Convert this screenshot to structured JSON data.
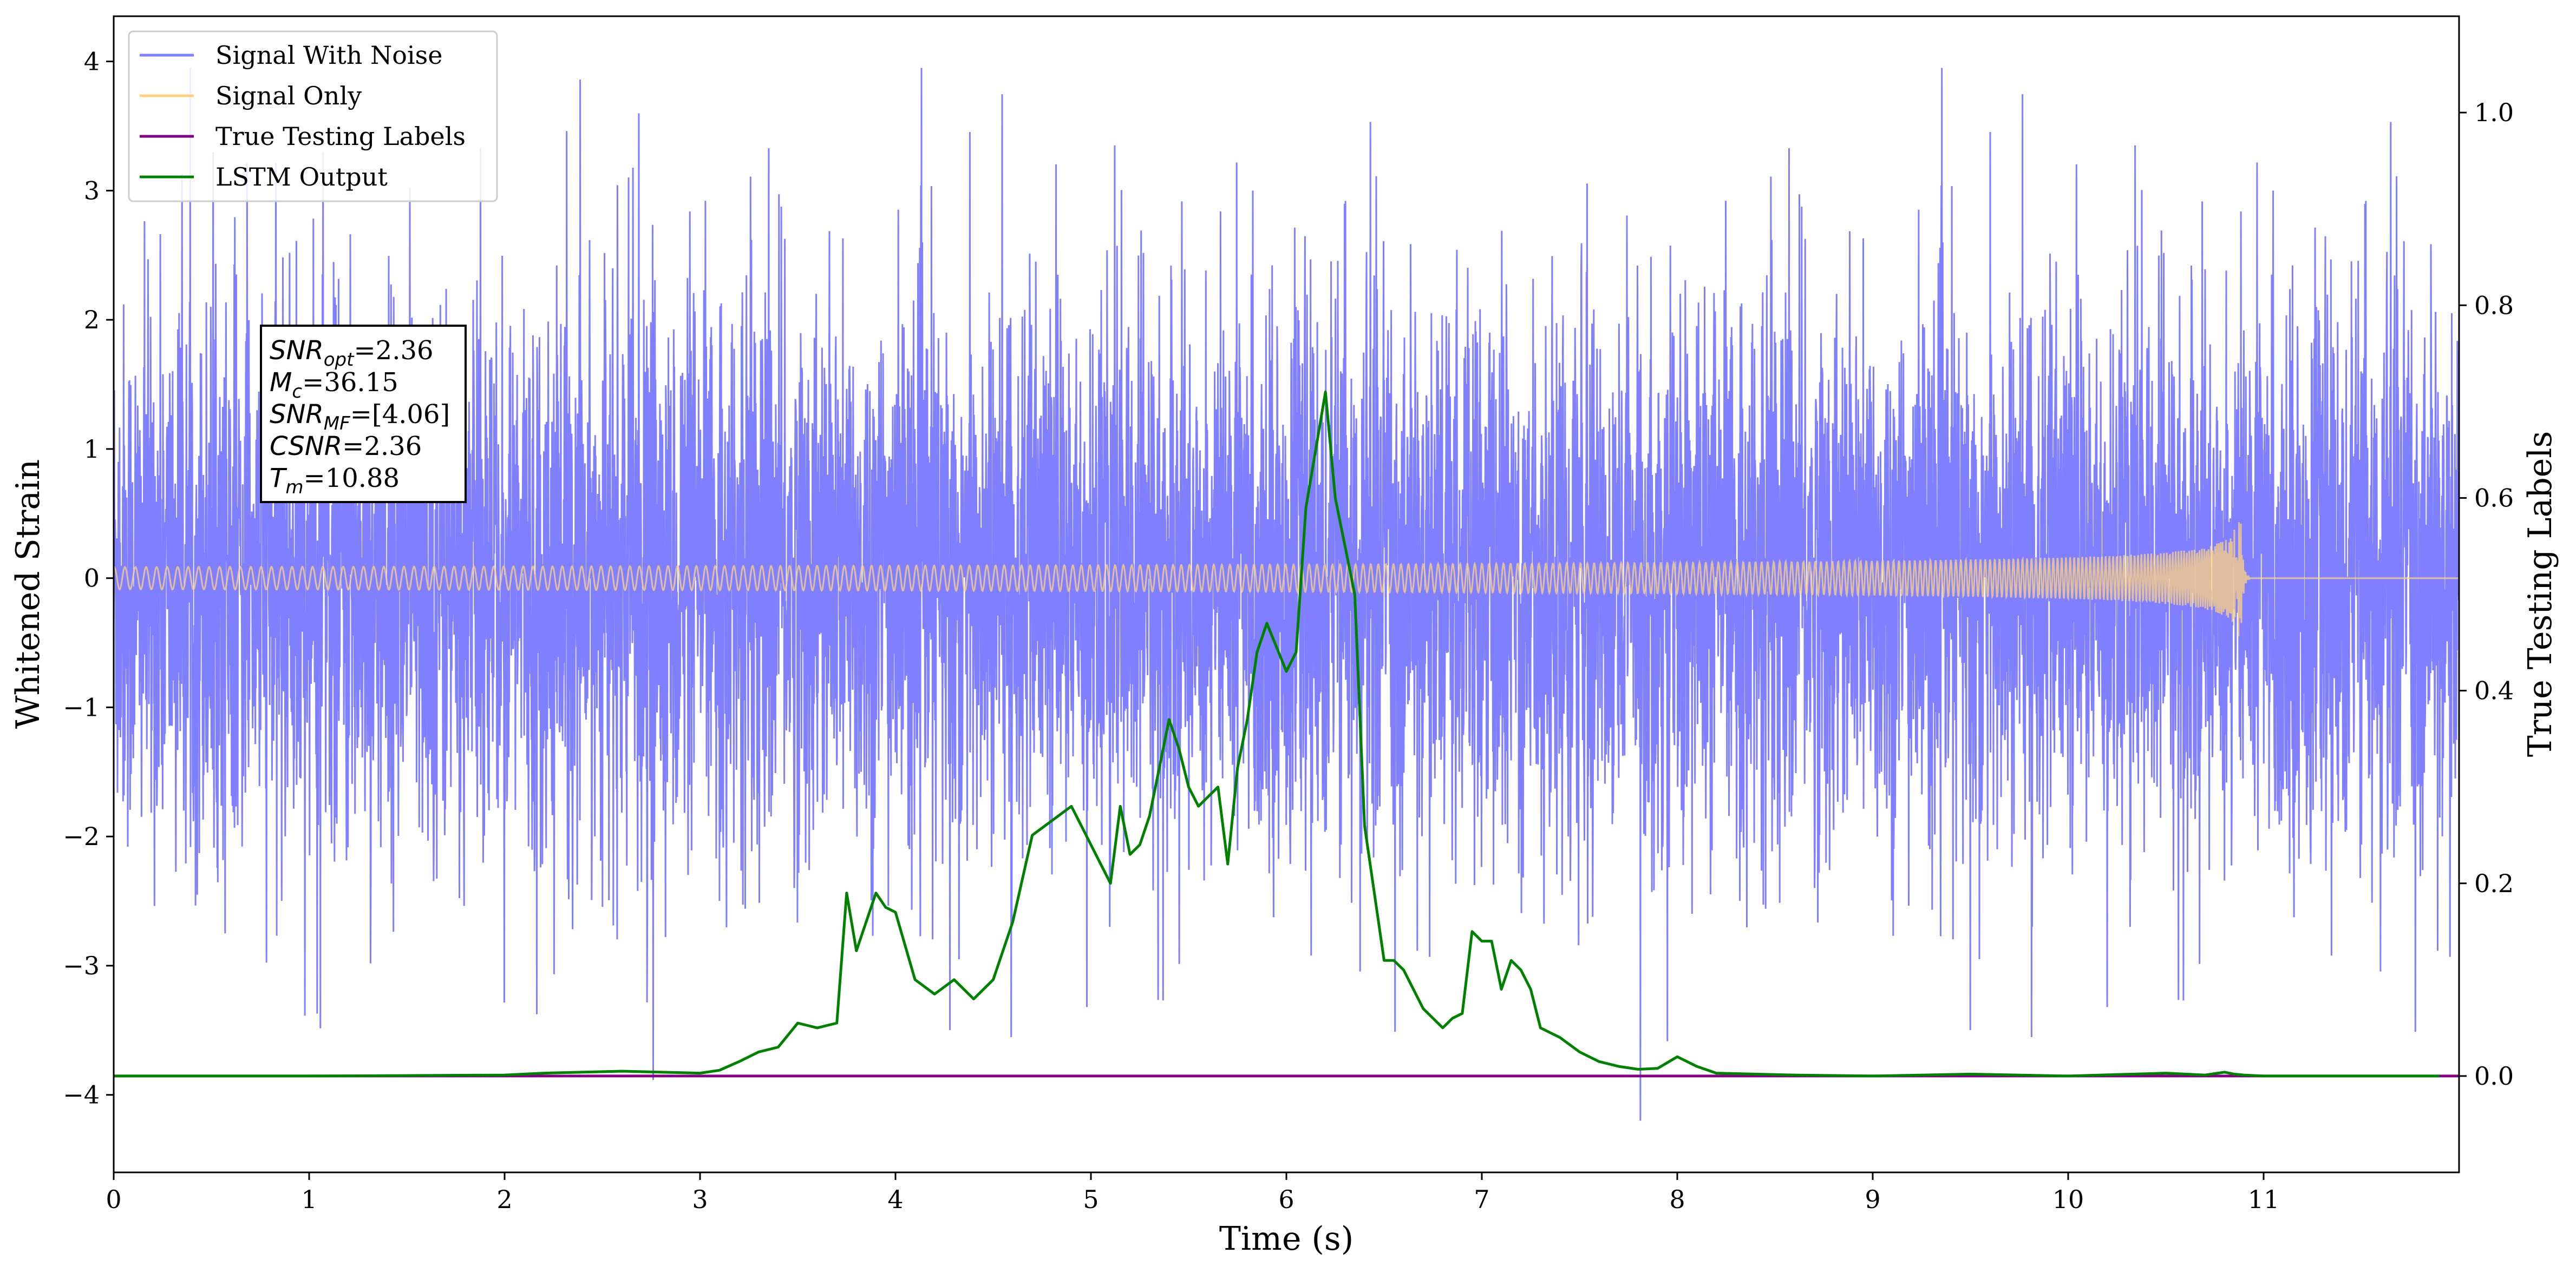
{
  "chart_data": {
    "type": "line",
    "xlabel": "Time (s)",
    "ylabel": "Whitened Strain",
    "ylabel_right": "True Testing Labels",
    "xlim": [
      0,
      12
    ],
    "ylim": [
      -4.6,
      4.35
    ],
    "ylim_right": [
      -0.1,
      1.1
    ],
    "x_ticks": [
      0,
      1,
      2,
      3,
      4,
      5,
      6,
      7,
      8,
      9,
      10,
      11
    ],
    "y_ticks": [
      -4,
      -3,
      -2,
      -1,
      0,
      1,
      2,
      3,
      4
    ],
    "y_tick_labels": [
      "−4",
      "−3",
      "−2",
      "−1",
      "0",
      "1",
      "2",
      "3",
      "4"
    ],
    "y_right_ticks": [
      0.0,
      0.2,
      0.4,
      0.6,
      0.8,
      1.0
    ],
    "y_right_tick_labels": [
      "0.0",
      "0.2",
      "0.4",
      "0.6",
      "0.8",
      "1.0"
    ],
    "legend": {
      "position": "upper-left",
      "entries": [
        "Signal With Noise",
        "Signal Only",
        "True Testing Labels",
        "LSTM Output"
      ]
    },
    "series": [
      {
        "name": "Signal With Noise",
        "axis": "left",
        "color": "#7f7fff",
        "style": "dense noise, approx. uniform in time",
        "typical_range": [
          -2.3,
          2.3
        ],
        "extremes": {
          "max": 3.95,
          "min": -4.2
        }
      },
      {
        "name": "Signal Only",
        "axis": "left",
        "color": "#ffd27f",
        "style": "near zero, chirp growing toward merger",
        "merger_time": 10.88,
        "peak_amplitude": 0.63
      },
      {
        "name": "True Testing Labels",
        "axis": "right",
        "color": "#800080",
        "x": [
          0,
          12
        ],
        "y": [
          0,
          0
        ]
      },
      {
        "name": "LSTM Output",
        "axis": "right",
        "color": "#008000",
        "x": [
          0.0,
          1.0,
          2.0,
          2.2,
          2.6,
          3.0,
          3.1,
          3.2,
          3.3,
          3.4,
          3.5,
          3.6,
          3.7,
          3.75,
          3.8,
          3.9,
          3.95,
          4.0,
          4.1,
          4.2,
          4.3,
          4.4,
          4.5,
          4.6,
          4.7,
          4.8,
          4.9,
          4.95,
          5.0,
          5.1,
          5.15,
          5.2,
          5.25,
          5.3,
          5.4,
          5.45,
          5.5,
          5.55,
          5.6,
          5.65,
          5.7,
          5.75,
          5.8,
          5.85,
          5.9,
          6.0,
          6.05,
          6.1,
          6.2,
          6.25,
          6.3,
          6.35,
          6.4,
          6.5,
          6.55,
          6.6,
          6.7,
          6.8,
          6.85,
          6.9,
          6.95,
          7.0,
          7.05,
          7.1,
          7.15,
          7.2,
          7.25,
          7.3,
          7.4,
          7.5,
          7.6,
          7.7,
          7.8,
          7.9,
          8.0,
          8.1,
          8.2,
          8.4,
          8.6,
          9.0,
          9.5,
          10.0,
          10.5,
          10.7,
          10.8,
          10.85,
          10.9,
          11.0,
          11.5,
          11.9
        ],
        "y": [
          0.0,
          0.0,
          0.001,
          0.003,
          0.005,
          0.003,
          0.006,
          0.015,
          0.025,
          0.03,
          0.055,
          0.05,
          0.055,
          0.19,
          0.13,
          0.19,
          0.175,
          0.17,
          0.1,
          0.085,
          0.1,
          0.08,
          0.1,
          0.16,
          0.25,
          0.265,
          0.28,
          0.26,
          0.24,
          0.2,
          0.28,
          0.23,
          0.24,
          0.27,
          0.37,
          0.34,
          0.3,
          0.28,
          0.29,
          0.3,
          0.22,
          0.32,
          0.37,
          0.44,
          0.47,
          0.42,
          0.44,
          0.59,
          0.71,
          0.6,
          0.55,
          0.5,
          0.26,
          0.12,
          0.12,
          0.11,
          0.07,
          0.05,
          0.06,
          0.065,
          0.15,
          0.14,
          0.14,
          0.09,
          0.12,
          0.11,
          0.09,
          0.05,
          0.04,
          0.025,
          0.015,
          0.01,
          0.007,
          0.008,
          0.02,
          0.01,
          0.003,
          0.002,
          0.001,
          0.0,
          0.002,
          0.0,
          0.003,
          0.001,
          0.004,
          0.002,
          0.001,
          0.0,
          0.0,
          0.0
        ]
      }
    ],
    "annotation": {
      "lines": [
        {
          "label": "SNR",
          "sub": "opt",
          "value": "=2.36"
        },
        {
          "label": "M",
          "sub": "c",
          "value": "=36.15"
        },
        {
          "label": "SNR",
          "sub": "MF",
          "value": "=[4.06]"
        },
        {
          "label": "CSNR",
          "sub": "",
          "value": "=2.36"
        },
        {
          "label": "T",
          "sub": "m",
          "value": "=10.88"
        }
      ]
    }
  }
}
